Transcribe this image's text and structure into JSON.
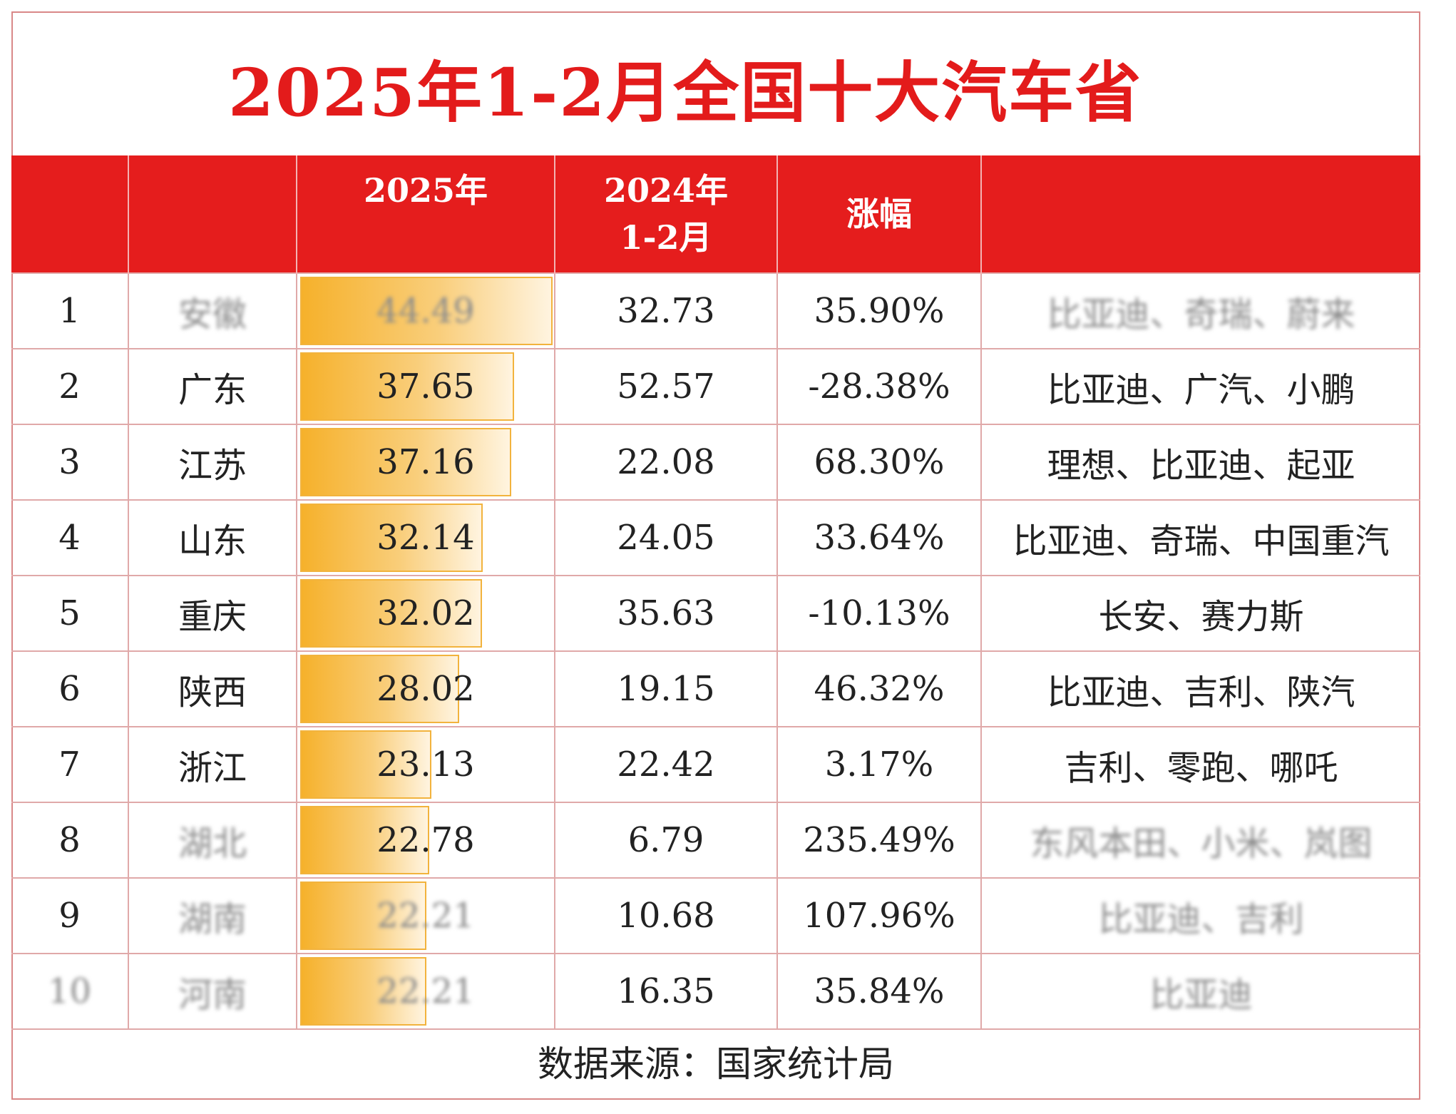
{
  "title": "2025年1-2月全国十大汽车省",
  "headers": {
    "rank": "",
    "province": "",
    "y2025": "2025年",
    "y2024_line1": "2024年",
    "y2024_line2": "1-2月",
    "growth": "涨幅",
    "brands": ""
  },
  "colors": {
    "accent_red": "#e51d1d",
    "title_red": "#e31b1b",
    "bar_orange": "#f6b12b"
  },
  "chart_data": {
    "type": "bar",
    "categories": [
      "1",
      "2",
      "3",
      "4",
      "5",
      "6",
      "7",
      "8",
      "9",
      "10"
    ],
    "series": [
      {
        "name": "2025年",
        "values": [
          44.49,
          37.65,
          37.16,
          32.14,
          32.02,
          28.02,
          23.13,
          22.78,
          22.21,
          22.21
        ]
      },
      {
        "name": "2024年 1-2月",
        "values": [
          32.73,
          52.57,
          22.08,
          24.05,
          35.63,
          19.15,
          22.42,
          6.79,
          10.68,
          16.35
        ]
      },
      {
        "name": "涨幅",
        "values": [
          35.9,
          -28.38,
          68.3,
          33.64,
          -10.13,
          46.32,
          3.17,
          235.49,
          107.96,
          35.84
        ]
      }
    ]
  },
  "rows": [
    {
      "rank": "1",
      "province": "安徽",
      "v2025": "44.49",
      "v2024": "32.73",
      "growth": "35.90%",
      "brands": "比亚迪、奇瑞、蔚来",
      "blur_province": true,
      "blur_v2025": true,
      "blur_brands": true
    },
    {
      "rank": "2",
      "province": "广东",
      "v2025": "37.65",
      "v2024": "52.57",
      "growth": "-28.38%",
      "brands": "比亚迪、广汽、小鹏"
    },
    {
      "rank": "3",
      "province": "江苏",
      "v2025": "37.16",
      "v2024": "22.08",
      "growth": "68.30%",
      "brands": "理想、比亚迪、起亚"
    },
    {
      "rank": "4",
      "province": "山东",
      "v2025": "32.14",
      "v2024": "24.05",
      "growth": "33.64%",
      "brands": "比亚迪、奇瑞、中国重汽"
    },
    {
      "rank": "5",
      "province": "重庆",
      "v2025": "32.02",
      "v2024": "35.63",
      "growth": "-10.13%",
      "brands": "长安、赛力斯"
    },
    {
      "rank": "6",
      "province": "陕西",
      "v2025": "28.02",
      "v2024": "19.15",
      "growth": "46.32%",
      "brands": "比亚迪、吉利、陕汽"
    },
    {
      "rank": "7",
      "province": "浙江",
      "v2025": "23.13",
      "v2024": "22.42",
      "growth": "3.17%",
      "brands": "吉利、零跑、哪吒"
    },
    {
      "rank": "8",
      "province": "湖北",
      "v2025": "22.78",
      "v2024": "6.79",
      "growth": "235.49%",
      "brands": "东风本田、小米、岚图",
      "blur_province": true,
      "blur_brands": true
    },
    {
      "rank": "9",
      "province": "湖南",
      "v2025": "22.21",
      "v2024": "10.68",
      "growth": "107.96%",
      "brands": "比亚迪、吉利",
      "blur_province": true,
      "blur_v2025": true,
      "blur_brands": true
    },
    {
      "rank": "10",
      "province": "河南",
      "v2025": "22.21",
      "v2024": "16.35",
      "growth": "35.84%",
      "brands": "比亚迪",
      "blur_rank": true,
      "blur_province": true,
      "blur_v2025": true,
      "blur_brands": true
    }
  ],
  "footer": "数据来源：国家统计局"
}
